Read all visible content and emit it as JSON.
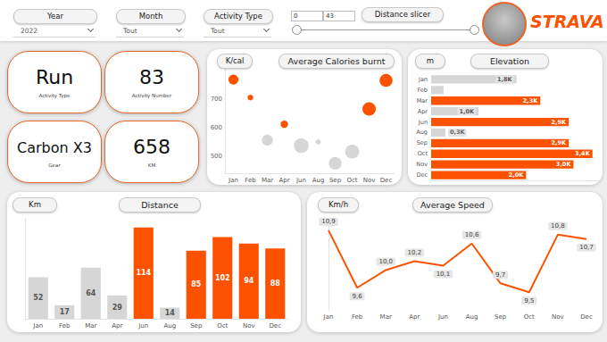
{
  "filters": [
    {
      "label": "Year",
      "value": "2022"
    },
    {
      "label": "Month",
      "value": "Tout"
    },
    {
      "label": "Activity Type",
      "value": "Tout"
    }
  ],
  "distance_slicer": {
    "label": "Distance slicer",
    "min": 0,
    "max": 43
  },
  "logo": "STRAVA",
  "cards": [
    {
      "value": "Run",
      "label": "Activity Type"
    },
    {
      "value": 83,
      "label": "Activity Number"
    },
    {
      "value": "Carbon X3",
      "label": "Gear"
    },
    {
      "value": 658,
      "label": "KM"
    }
  ],
  "chart_data": [
    {
      "type": "scatter",
      "title": "Average Calories burnt",
      "ylabel": "K/cal",
      "categories": [
        "Jan",
        "Feb",
        "Mar",
        "Apr",
        "Jun",
        "Aug",
        "Sep",
        "Oct",
        "Nov",
        "Dec"
      ],
      "values": [
        769,
        706,
        556,
        612,
        537,
        550,
        475,
        516,
        666,
        766
      ],
      "sizes": [
        52,
        17,
        64,
        29,
        114,
        14,
        85,
        102,
        94,
        88
      ],
      "colors": [
        "#fc5200",
        "#fc5200",
        "#d6d6d6",
        "#fc5200",
        "#d6d6d6",
        "#d6d6d6",
        "#d6d6d6",
        "#d6d6d6",
        "#fc5200",
        "#fc5200"
      ],
      "ylim": [
        440,
        810
      ],
      "yticks": [
        500,
        600,
        700
      ],
      "grid": false
    },
    {
      "type": "bar",
      "orientation": "horizontal",
      "title": "Elevation",
      "xlabel": "m",
      "categories": [
        "Jan",
        "Feb",
        "Mar",
        "Apr",
        "Jun",
        "Aug",
        "Sep",
        "Oct",
        "Nov",
        "Dec"
      ],
      "values": [
        1800,
        260,
        2300,
        1000,
        2900,
        300,
        2900,
        3400,
        3000,
        2000
      ],
      "value_labels": [
        "1,8K",
        null,
        "2,3K",
        "1,0K",
        "2,9K",
        "0,3K",
        "2,9K",
        "3,4K",
        "3,0K",
        "2,0K"
      ],
      "colors": [
        "#d6d6d6",
        "#d6d6d6",
        "#fc5200",
        "#d6d6d6",
        "#fc5200",
        "#d6d6d6",
        "#fc5200",
        "#fc5200",
        "#fc5200",
        "#fc5200"
      ],
      "xlim": [
        0,
        3500
      ],
      "tick_labels": "y",
      "grid": false,
      "data_labels": true
    },
    {
      "type": "bar",
      "title": "Distance",
      "ylabel": "Km",
      "categories": [
        "Jan",
        "Feb",
        "Mar",
        "Apr",
        "Jun",
        "Aug",
        "Sep",
        "Oct",
        "Nov",
        "Dec"
      ],
      "values": [
        52,
        17,
        64,
        29,
        114,
        14,
        85,
        102,
        94,
        88
      ],
      "colors": [
        "#d6d6d6",
        "#d6d6d6",
        "#d6d6d6",
        "#d6d6d6",
        "#fc5200",
        "#d6d6d6",
        "#fc5200",
        "#fc5200",
        "#fc5200",
        "#fc5200"
      ],
      "ylim": [
        0,
        125
      ],
      "tick_labels": "x",
      "grid": false,
      "data_labels": true
    },
    {
      "type": "line",
      "title": "Average Speed",
      "ylabel": "Km/h",
      "categories": [
        "Jan",
        "Feb",
        "Mar",
        "Apr",
        "Jun",
        "Aug",
        "Sep",
        "Oct",
        "Nov",
        "Dec"
      ],
      "values": [
        10.9,
        9.6,
        10.0,
        10.2,
        10.1,
        10.6,
        9.7,
        9.5,
        10.8,
        10.7
      ],
      "value_labels": [
        "10,9",
        "9,6",
        "10,0",
        "10,2",
        "10,1",
        "10,6",
        "9,7",
        "9,5",
        "10,8",
        "10,7"
      ],
      "color": "#fc5200",
      "ylim": [
        9.1,
        11.1
      ],
      "tick_labels": "x",
      "grid": false,
      "data_labels": true
    }
  ]
}
